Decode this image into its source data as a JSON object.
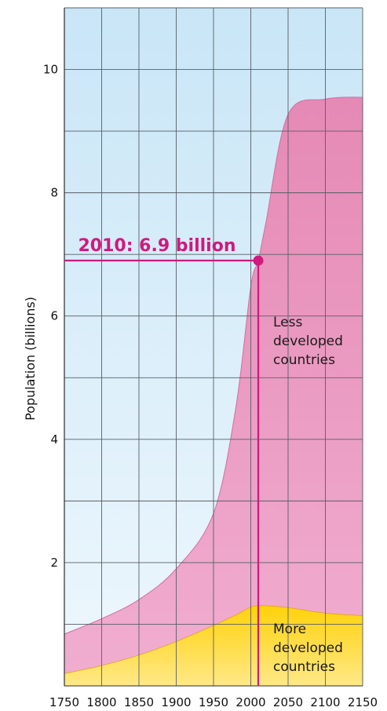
{
  "chart_data": {
    "type": "area",
    "stacked": true,
    "ylabel": "Population (billions)",
    "xlabel": "",
    "xlim": [
      1750,
      2150
    ],
    "ylim": [
      0,
      11
    ],
    "x_ticks": [
      1750,
      1800,
      1850,
      1900,
      1950,
      2000,
      2050,
      2100,
      2150
    ],
    "y_ticks": [
      2,
      4,
      6,
      8,
      10
    ],
    "grid": true,
    "series": [
      {
        "name": "More developed countries",
        "label_lines": [
          "More",
          "developed",
          "countries"
        ],
        "color": "#fdd31c",
        "x": [
          1750,
          1800,
          1850,
          1900,
          1950,
          1980,
          2000,
          2010,
          2020,
          2050,
          2100,
          2150
        ],
        "y": [
          0.2,
          0.33,
          0.5,
          0.72,
          0.98,
          1.15,
          1.28,
          1.3,
          1.3,
          1.27,
          1.18,
          1.14
        ]
      },
      {
        "name": "Less developed countries",
        "label_lines": [
          "Less",
          "developed",
          "countries"
        ],
        "color": "#e993bd",
        "x": [
          1750,
          1800,
          1850,
          1900,
          1950,
          1980,
          2000,
          2010,
          2020,
          2050,
          2100,
          2150
        ],
        "y": [
          0.64,
          0.76,
          0.9,
          1.18,
          1.82,
          3.37,
          5.2,
          5.6,
          6.2,
          8.0,
          8.34,
          8.41
        ]
      }
    ],
    "annotation": {
      "text": "2010: 6.9 billion",
      "x": 2010,
      "y": 6.9,
      "color": "#cf1a7e"
    },
    "colors": {
      "sky_top": "#c9e6f7",
      "sky_bottom": "#eef7fd",
      "less_top": "#e589b5",
      "less_bottom": "#f1aed0",
      "more_top": "#ffd20a",
      "more_bottom": "#ffe888",
      "grid": "#585e66",
      "accent": "#cf1a7e"
    }
  }
}
